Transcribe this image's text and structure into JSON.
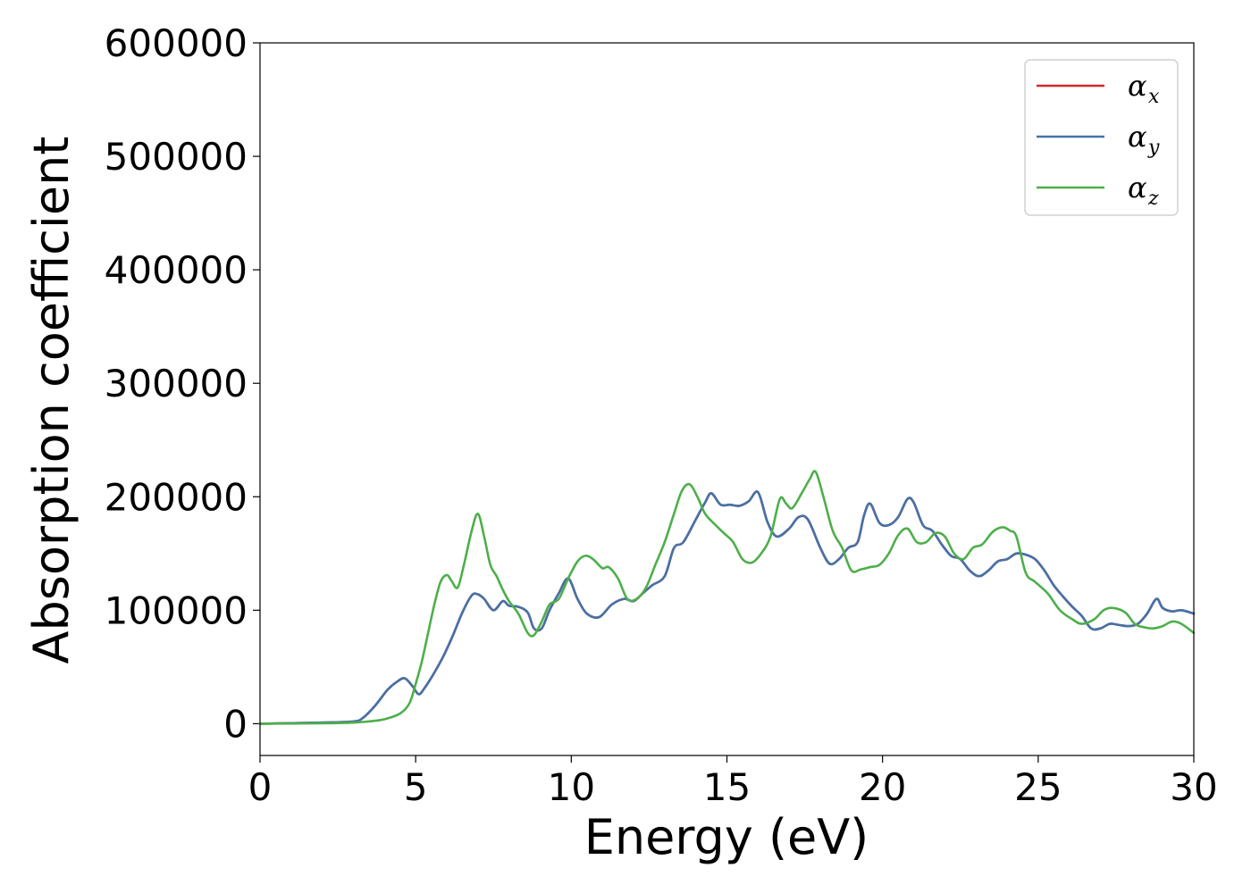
{
  "chart_data": {
    "type": "line",
    "xlabel": "Energy (eV)",
    "ylabel": "Absorption coefficient",
    "xlim": [
      0,
      30
    ],
    "ylim": [
      -28000,
      600000
    ],
    "xticks": [
      0,
      5,
      10,
      15,
      20,
      25,
      30
    ],
    "yticks": [
      0,
      100000,
      200000,
      300000,
      400000,
      500000,
      600000
    ],
    "xtick_labels": [
      "0",
      "5",
      "10",
      "15",
      "20",
      "25",
      "30"
    ],
    "ytick_labels": [
      "0",
      "100000",
      "200000",
      "300000",
      "400000",
      "500000",
      "600000"
    ],
    "grid": false,
    "legend_position": "top-right",
    "series": [
      {
        "name_base": "α",
        "name_sub": "x",
        "color": "#d62728",
        "x": [
          0,
          2,
          3,
          3.3,
          3.7,
          4.1,
          4.4,
          4.65,
          4.9,
          5.1,
          5.3,
          5.6,
          5.9,
          6.2,
          6.5,
          6.8,
          7.0,
          7.2,
          7.5,
          7.8,
          8.0,
          8.3,
          8.6,
          8.8,
          9.05,
          9.3,
          9.6,
          9.9,
          10.2,
          10.5,
          10.9,
          11.3,
          11.7,
          12.0,
          12.3,
          12.6,
          13.0,
          13.3,
          13.6,
          14.0,
          14.3,
          14.5,
          14.8,
          15.1,
          15.4,
          15.7,
          16.0,
          16.3,
          16.6,
          17.0,
          17.3,
          17.6,
          18.0,
          18.3,
          18.6,
          18.9,
          19.2,
          19.4,
          19.6,
          19.9,
          20.2,
          20.5,
          20.8,
          21.0,
          21.3,
          21.6,
          21.9,
          22.2,
          22.5,
          22.8,
          23.1,
          23.4,
          23.7,
          24.0,
          24.3,
          24.6,
          24.9,
          25.2,
          25.5,
          25.8,
          26.1,
          26.4,
          26.7,
          27.0,
          27.3,
          27.6,
          27.9,
          28.2,
          28.5,
          28.8,
          29.0,
          29.3,
          29.6,
          30
        ],
        "y": [
          0,
          1000,
          2000,
          5000,
          16000,
          30000,
          37000,
          40000,
          33000,
          26000,
          32000,
          45000,
          60000,
          78000,
          98000,
          113000,
          114000,
          110000,
          100000,
          108000,
          104000,
          103000,
          98000,
          84000,
          84000,
          100000,
          115000,
          128000,
          110000,
          97000,
          94000,
          105000,
          110000,
          108000,
          115000,
          122000,
          130000,
          155000,
          160000,
          180000,
          195000,
          203000,
          193000,
          193000,
          192000,
          196000,
          204000,
          178000,
          165000,
          172000,
          182000,
          180000,
          155000,
          141000,
          145000,
          155000,
          160000,
          183000,
          194000,
          177000,
          175000,
          182000,
          198000,
          195000,
          175000,
          170000,
          158000,
          148000,
          145000,
          135000,
          130000,
          135000,
          143000,
          145000,
          150000,
          149000,
          145000,
          135000,
          122000,
          112000,
          103000,
          95000,
          84000,
          84000,
          88000,
          87000,
          86000,
          88000,
          97000,
          110000,
          102000,
          99000,
          100000,
          97000
        ]
      },
      {
        "name_base": "α",
        "name_sub": "y",
        "color": "#4472a8",
        "x": [
          0,
          2,
          3,
          3.3,
          3.7,
          4.1,
          4.4,
          4.65,
          4.9,
          5.1,
          5.3,
          5.6,
          5.9,
          6.2,
          6.5,
          6.8,
          7.0,
          7.2,
          7.5,
          7.8,
          8.0,
          8.3,
          8.6,
          8.8,
          9.05,
          9.3,
          9.6,
          9.9,
          10.2,
          10.5,
          10.9,
          11.3,
          11.7,
          12.0,
          12.3,
          12.6,
          13.0,
          13.3,
          13.6,
          14.0,
          14.3,
          14.5,
          14.8,
          15.1,
          15.4,
          15.7,
          16.0,
          16.3,
          16.6,
          17.0,
          17.3,
          17.6,
          18.0,
          18.3,
          18.6,
          18.9,
          19.2,
          19.4,
          19.6,
          19.9,
          20.2,
          20.5,
          20.8,
          21.0,
          21.3,
          21.6,
          21.9,
          22.2,
          22.5,
          22.8,
          23.1,
          23.4,
          23.7,
          24.0,
          24.3,
          24.6,
          24.9,
          25.2,
          25.5,
          25.8,
          26.1,
          26.4,
          26.7,
          27.0,
          27.3,
          27.6,
          27.9,
          28.2,
          28.5,
          28.8,
          29.0,
          29.3,
          29.6,
          30
        ],
        "y": [
          0,
          1000,
          2000,
          5000,
          16000,
          30000,
          37000,
          40000,
          33000,
          26000,
          32000,
          45000,
          60000,
          78000,
          98000,
          113000,
          114000,
          110000,
          100000,
          108000,
          104000,
          103000,
          98000,
          84000,
          84000,
          100000,
          115000,
          128000,
          110000,
          97000,
          94000,
          105000,
          110000,
          108000,
          115000,
          122000,
          130000,
          155000,
          160000,
          180000,
          195000,
          203000,
          193000,
          193000,
          192000,
          196000,
          204000,
          178000,
          165000,
          172000,
          182000,
          180000,
          155000,
          141000,
          145000,
          155000,
          160000,
          183000,
          194000,
          177000,
          175000,
          182000,
          198000,
          195000,
          175000,
          170000,
          158000,
          148000,
          145000,
          135000,
          130000,
          135000,
          143000,
          145000,
          150000,
          149000,
          145000,
          135000,
          122000,
          112000,
          103000,
          95000,
          84000,
          84000,
          88000,
          87000,
          86000,
          88000,
          97000,
          110000,
          102000,
          99000,
          100000,
          97000
        ]
      },
      {
        "name_base": "α",
        "name_sub": "z",
        "color": "#4daf4a",
        "x": [
          0,
          2,
          3,
          3.5,
          4.0,
          4.5,
          4.8,
          5.0,
          5.2,
          5.4,
          5.6,
          5.8,
          6.0,
          6.15,
          6.35,
          6.55,
          6.8,
          7.0,
          7.2,
          7.4,
          7.6,
          7.8,
          8.0,
          8.3,
          8.6,
          8.8,
          9.05,
          9.3,
          9.6,
          9.9,
          10.2,
          10.45,
          10.7,
          11.0,
          11.2,
          11.5,
          11.8,
          12.1,
          12.4,
          12.7,
          13.0,
          13.3,
          13.55,
          13.8,
          14.05,
          14.3,
          14.6,
          14.9,
          15.2,
          15.5,
          15.8,
          16.1,
          16.4,
          16.7,
          16.9,
          17.1,
          17.4,
          17.65,
          17.85,
          18.1,
          18.4,
          18.7,
          19.0,
          19.3,
          19.6,
          19.9,
          20.2,
          20.5,
          20.8,
          21.1,
          21.4,
          21.7,
          22.0,
          22.3,
          22.6,
          22.9,
          23.2,
          23.5,
          23.7,
          23.9,
          24.1,
          24.3,
          24.6,
          24.9,
          25.3,
          25.7,
          26.1,
          26.4,
          26.8,
          27.1,
          27.4,
          27.8,
          28.1,
          28.4,
          28.7,
          29.0,
          29.3,
          29.6,
          30
        ],
        "y": [
          0,
          400,
          1000,
          2000,
          4000,
          9000,
          18000,
          35000,
          55000,
          80000,
          105000,
          125000,
          131000,
          126000,
          120000,
          140000,
          170000,
          185000,
          165000,
          140000,
          130000,
          118000,
          108000,
          97000,
          80000,
          78000,
          90000,
          105000,
          110000,
          128000,
          143000,
          148000,
          145000,
          137000,
          138000,
          128000,
          110000,
          110000,
          120000,
          140000,
          160000,
          185000,
          205000,
          211000,
          200000,
          185000,
          176000,
          168000,
          160000,
          145000,
          142000,
          150000,
          165000,
          198000,
          194000,
          190000,
          203000,
          215000,
          222000,
          200000,
          170000,
          155000,
          135000,
          136000,
          138000,
          140000,
          150000,
          166000,
          172000,
          160000,
          160000,
          168000,
          165000,
          150000,
          145000,
          155000,
          158000,
          168000,
          172000,
          173000,
          170000,
          165000,
          133000,
          125000,
          115000,
          100000,
          92000,
          88000,
          92000,
          100000,
          102000,
          98000,
          88000,
          85000,
          84000,
          86000,
          90000,
          88000,
          80000
        ]
      }
    ]
  }
}
